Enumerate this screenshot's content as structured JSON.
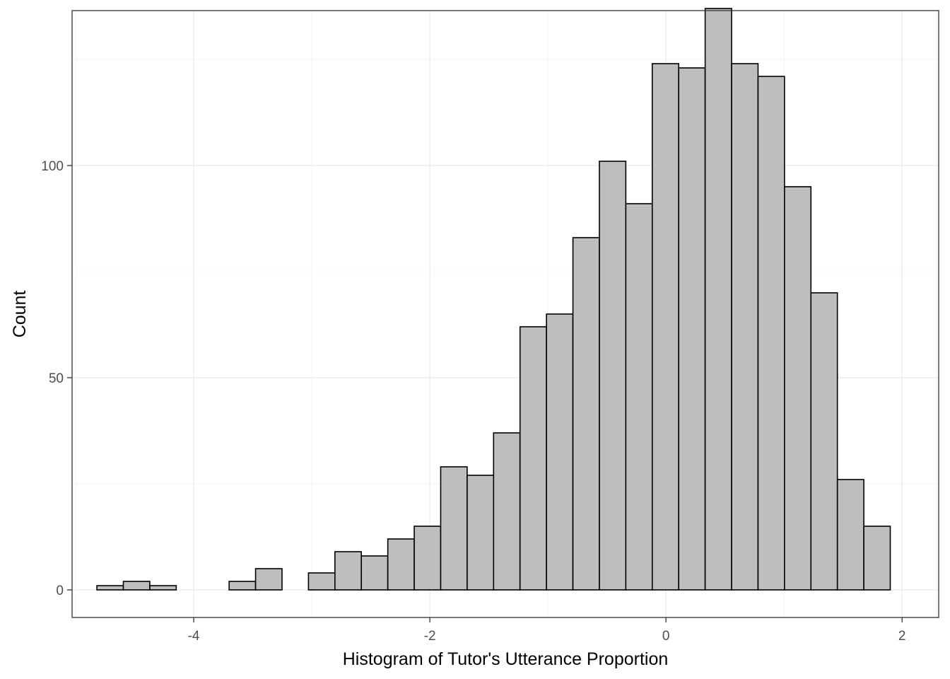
{
  "chart_data": {
    "type": "bar",
    "title": "",
    "xlabel": "Histogram of Tutor's Utterance Proportion",
    "ylabel": "Count",
    "xlim": [
      -5.03,
      2.31
    ],
    "ylim": [
      -6.5,
      136.5
    ],
    "x_ticks": [
      {
        "value": -4,
        "label": "-4"
      },
      {
        "value": -2,
        "label": "-2"
      },
      {
        "value": 0,
        "label": "0"
      },
      {
        "value": 2,
        "label": "2"
      }
    ],
    "y_ticks": [
      {
        "value": 0,
        "label": "0"
      },
      {
        "value": 50,
        "label": "50"
      },
      {
        "value": 100,
        "label": "100"
      }
    ],
    "grid": true,
    "bin_width": 0.224,
    "bins": [
      {
        "x0": -4.82,
        "x1": -4.596,
        "count": 1
      },
      {
        "x0": -4.596,
        "x1": -4.372,
        "count": 2
      },
      {
        "x0": -4.372,
        "x1": -4.148,
        "count": 1
      },
      {
        "x0": -4.148,
        "x1": -3.924,
        "count": 0
      },
      {
        "x0": -3.924,
        "x1": -3.7,
        "count": 0
      },
      {
        "x0": -3.7,
        "x1": -3.476,
        "count": 2
      },
      {
        "x0": -3.476,
        "x1": -3.252,
        "count": 5
      },
      {
        "x0": -3.252,
        "x1": -3.028,
        "count": 0
      },
      {
        "x0": -3.028,
        "x1": -2.804,
        "count": 4
      },
      {
        "x0": -2.804,
        "x1": -2.58,
        "count": 9
      },
      {
        "x0": -2.58,
        "x1": -2.356,
        "count": 8
      },
      {
        "x0": -2.356,
        "x1": -2.132,
        "count": 12
      },
      {
        "x0": -2.132,
        "x1": -1.908,
        "count": 15
      },
      {
        "x0": -1.908,
        "x1": -1.684,
        "count": 29
      },
      {
        "x0": -1.684,
        "x1": -1.46,
        "count": 27
      },
      {
        "x0": -1.46,
        "x1": -1.236,
        "count": 37
      },
      {
        "x0": -1.236,
        "x1": -1.012,
        "count": 62
      },
      {
        "x0": -1.012,
        "x1": -0.788,
        "count": 65
      },
      {
        "x0": -0.788,
        "x1": -0.564,
        "count": 83
      },
      {
        "x0": -0.564,
        "x1": -0.34,
        "count": 101
      },
      {
        "x0": -0.34,
        "x1": -0.116,
        "count": 91
      },
      {
        "x0": -0.116,
        "x1": 0.108,
        "count": 124
      },
      {
        "x0": 0.108,
        "x1": 0.332,
        "count": 123
      },
      {
        "x0": 0.332,
        "x1": 0.556,
        "count": 137
      },
      {
        "x0": 0.556,
        "x1": 0.78,
        "count": 124
      },
      {
        "x0": 0.78,
        "x1": 1.004,
        "count": 121
      },
      {
        "x0": 1.004,
        "x1": 1.228,
        "count": 95
      },
      {
        "x0": 1.228,
        "x1": 1.452,
        "count": 70
      },
      {
        "x0": 1.452,
        "x1": 1.676,
        "count": 26
      },
      {
        "x0": 1.676,
        "x1": 1.9,
        "count": 15
      }
    ],
    "colors": {
      "bar_fill": "#bebebe",
      "bar_stroke": "#000000",
      "grid_major": "#ebebeb",
      "grid_minor": "#f5f5f5",
      "panel_border": "#333333",
      "tick_label": "#4d4d4d"
    }
  }
}
